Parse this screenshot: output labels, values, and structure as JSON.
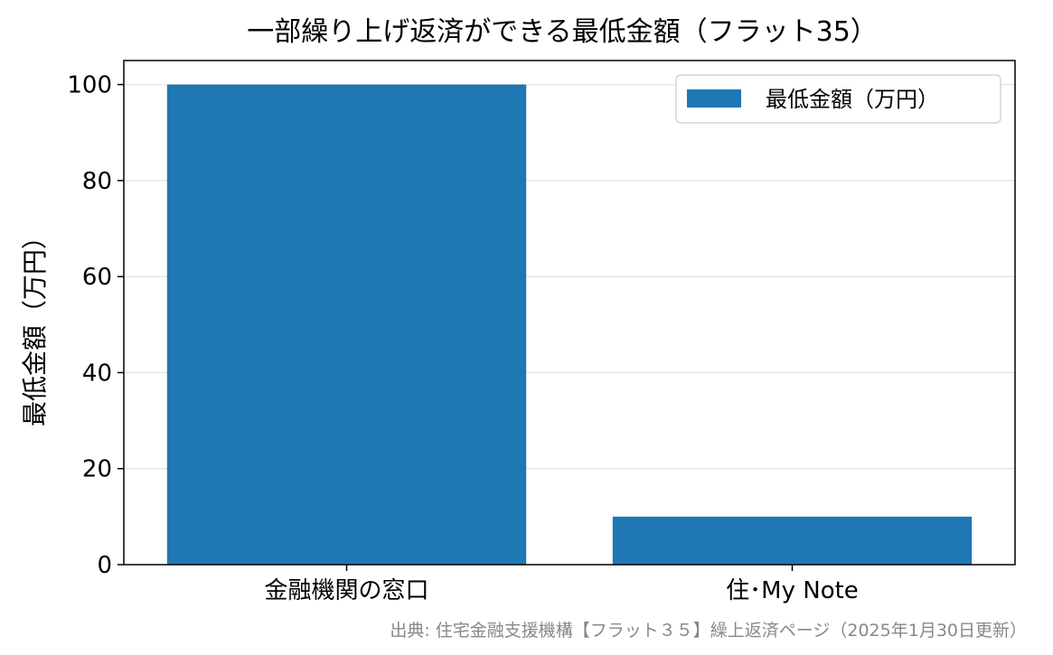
{
  "chart_data": {
    "type": "bar",
    "title": "一部繰り上げ返済ができる最低金額（フラット35）",
    "ylabel": "最低金額（万円）",
    "xlabel": "",
    "categories": [
      "金融機関の窓口",
      "住･My Note"
    ],
    "series": [
      {
        "name": "最低金額（万円）",
        "values": [
          100,
          10
        ]
      }
    ],
    "ylim": [
      0,
      105
    ],
    "yticks": [
      0,
      20,
      40,
      60,
      80,
      100
    ],
    "grid": true,
    "legend": "top-right",
    "bar_color": "#1f77b4",
    "source_note": "出典: 住宅金融支援機構【フラット３５】繰上返済ページ（2025年1月30日更新）"
  }
}
